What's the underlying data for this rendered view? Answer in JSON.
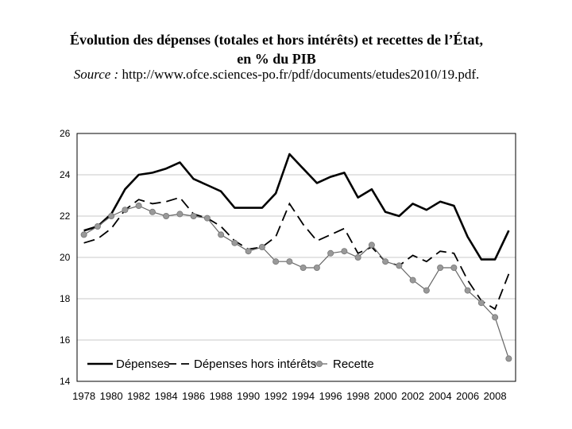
{
  "header": {
    "title_line1": "Évolution des dépenses (totales et hors intérêts) et recettes de l’État,",
    "title_line2": "en % du PIB",
    "source_label": "Source :",
    "source_url": "http://www.ofce.sciences-po.fr/pdf/documents/etudes2010/19.pdf."
  },
  "chart_data": {
    "type": "line",
    "title": "Évolution des dépenses (totales et hors intérêts) et recettes de l’État, en % du PIB",
    "xlabel": "",
    "ylabel": "",
    "x": [
      1978,
      1979,
      1980,
      1981,
      1982,
      1983,
      1984,
      1985,
      1986,
      1987,
      1988,
      1989,
      1990,
      1991,
      1992,
      1993,
      1994,
      1995,
      1996,
      1997,
      1998,
      1999,
      2000,
      2001,
      2002,
      2003,
      2004,
      2005,
      2006,
      2007,
      2008,
      2009
    ],
    "ylim": [
      14,
      26
    ],
    "yticks": [
      14,
      16,
      18,
      20,
      22,
      24,
      26
    ],
    "xticks": [
      1978,
      1980,
      1982,
      1984,
      1986,
      1988,
      1990,
      1992,
      1994,
      1996,
      1998,
      2000,
      2002,
      2004,
      2006,
      2008
    ],
    "grid": "horizontal",
    "legend": "bottom-left",
    "series": [
      {
        "name": "Dépenses",
        "style": "solid",
        "color": "#000000",
        "values": [
          21.3,
          21.5,
          22.1,
          23.3,
          24.0,
          24.1,
          24.3,
          24.6,
          23.8,
          23.5,
          23.2,
          22.4,
          22.4,
          22.4,
          23.1,
          25.0,
          24.3,
          23.6,
          23.9,
          24.1,
          22.9,
          23.3,
          22.2,
          22.0,
          22.6,
          22.3,
          22.7,
          22.5,
          21.0,
          19.9,
          19.9,
          21.3
        ]
      },
      {
        "name": "Dépenses hors intérêts",
        "style": "dashed",
        "color": "#000000",
        "values": [
          20.7,
          20.9,
          21.4,
          22.3,
          22.8,
          22.6,
          22.7,
          22.9,
          22.1,
          21.9,
          21.5,
          20.8,
          20.4,
          20.5,
          21.0,
          22.6,
          21.6,
          20.8,
          21.1,
          21.4,
          20.2,
          20.5,
          19.8,
          19.6,
          20.1,
          19.8,
          20.3,
          20.2,
          18.9,
          17.9,
          17.5,
          19.2
        ]
      },
      {
        "name": "Recette",
        "style": "solid-markers",
        "color": "#999999",
        "values": [
          21.1,
          21.5,
          22.0,
          22.3,
          22.5,
          22.2,
          22.0,
          22.1,
          22.0,
          21.9,
          21.1,
          20.7,
          20.3,
          20.5,
          19.8,
          19.8,
          19.5,
          19.5,
          20.2,
          20.3,
          20.0,
          20.6,
          19.8,
          19.6,
          18.9,
          18.4,
          19.5,
          19.5,
          18.4,
          17.8,
          17.1,
          15.1
        ]
      }
    ]
  }
}
